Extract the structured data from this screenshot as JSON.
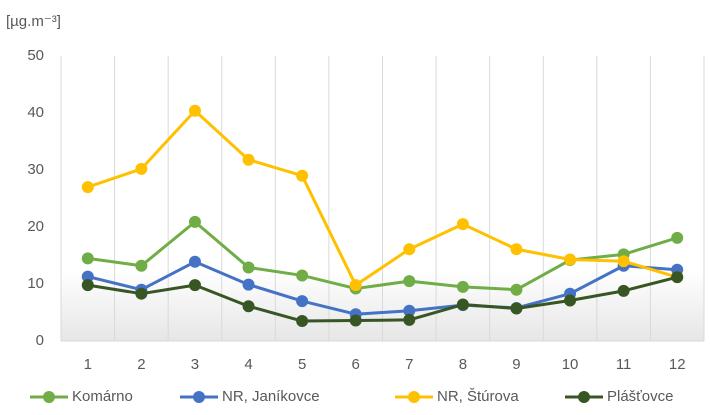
{
  "chart_data": {
    "type": "line",
    "ylabel": "[µg.m⁻³]",
    "categories": [
      "1",
      "2",
      "3",
      "4",
      "5",
      "6",
      "7",
      "8",
      "9",
      "10",
      "11",
      "12"
    ],
    "series": [
      {
        "name": "Komárno",
        "color": "#70ad47",
        "values": [
          14.5,
          13.2,
          20.9,
          12.9,
          11.5,
          9.2,
          10.5,
          9.5,
          9.0,
          14.2,
          15.2,
          18.1
        ]
      },
      {
        "name": "NR, Janíkovce",
        "color": "#4472c4",
        "values": [
          11.3,
          9.0,
          13.9,
          9.9,
          7.0,
          4.7,
          5.3,
          6.3,
          5.8,
          8.3,
          13.2,
          12.5
        ]
      },
      {
        "name": "NR, Štúrova",
        "color": "#ffc000",
        "values": [
          27.0,
          30.2,
          40.4,
          31.8,
          29.0,
          9.8,
          16.1,
          20.5,
          16.1,
          14.3,
          14.0,
          11.2
        ]
      },
      {
        "name": "Plášťovce",
        "color": "#375623",
        "values": [
          9.8,
          8.3,
          9.8,
          6.1,
          3.5,
          3.6,
          3.7,
          6.4,
          5.7,
          7.1,
          8.8,
          11.2
        ]
      }
    ],
    "ylim": [
      0,
      50
    ],
    "yticks": [
      0,
      10,
      20,
      30,
      40,
      50
    ],
    "grid": true,
    "legend": "bottom"
  }
}
